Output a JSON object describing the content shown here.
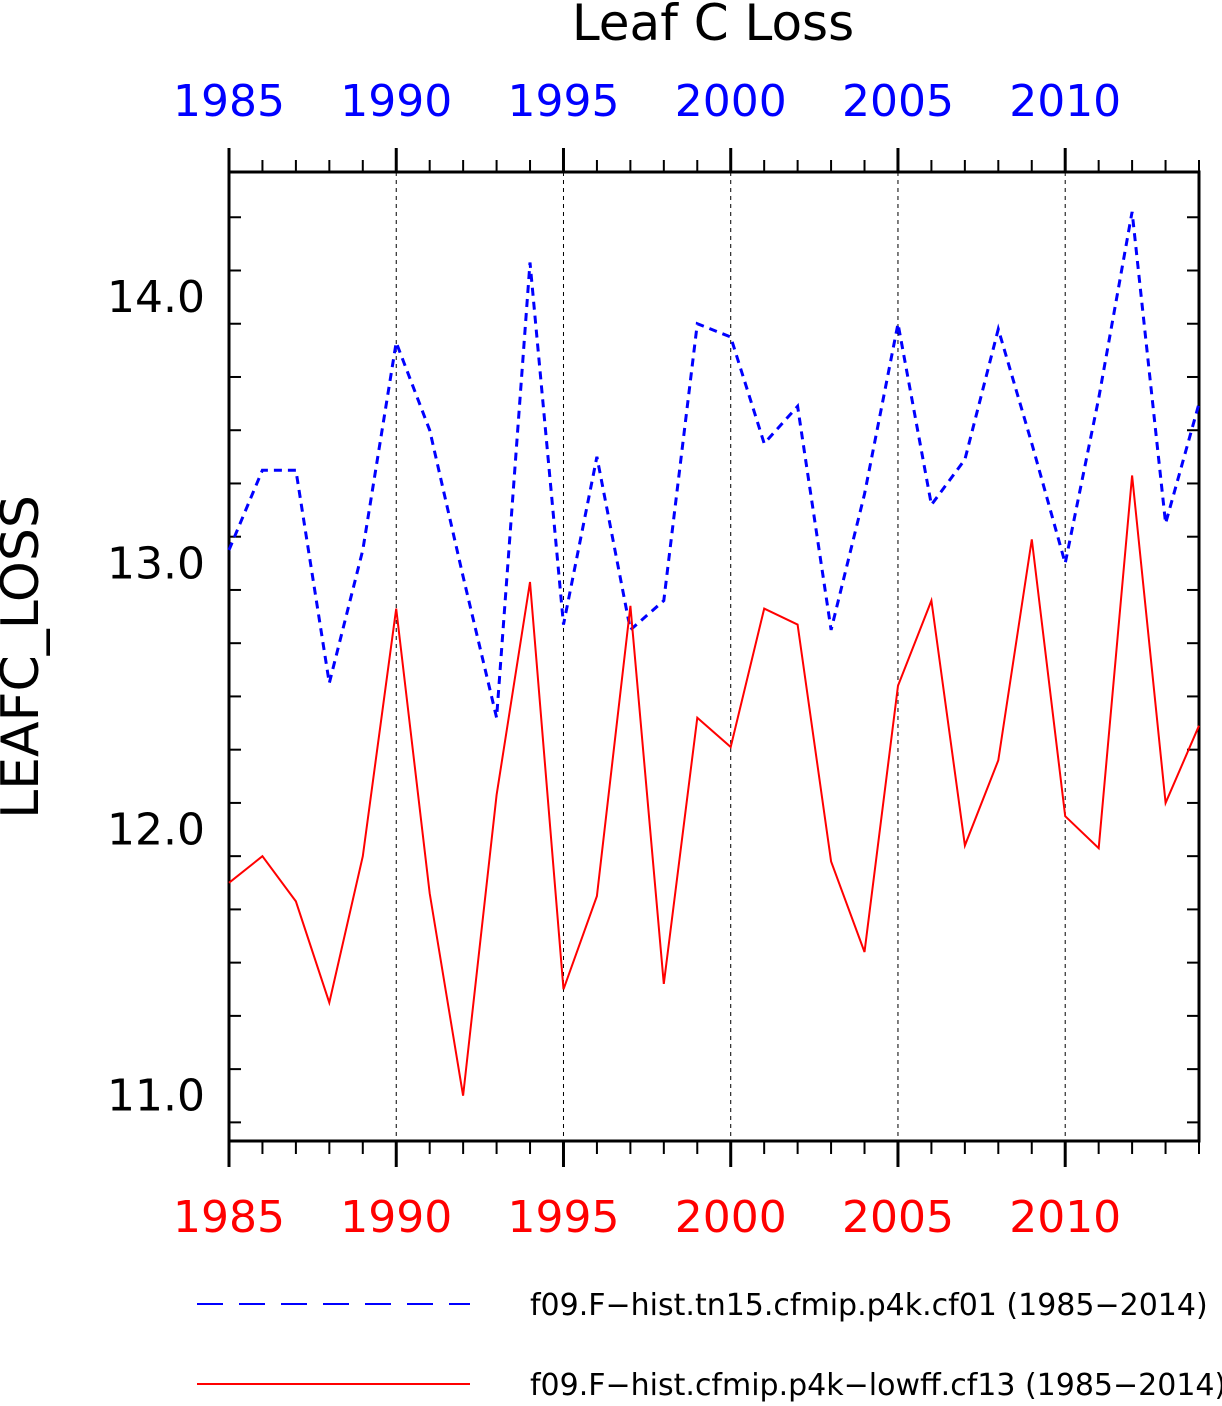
{
  "chart_data": {
    "type": "line",
    "title": "Leaf C Loss",
    "ylabel": "LEAFC_LOSS",
    "xlabel": "",
    "xlim": [
      1985,
      2014
    ],
    "ylim": [
      10.83,
      14.47
    ],
    "x_ticks": [
      1985,
      1990,
      1995,
      2000,
      2005,
      2010
    ],
    "x_tick_labels": [
      "1985",
      "1990",
      "1995",
      "2000",
      "2005",
      "2010"
    ],
    "y_ticks": [
      11.0,
      12.0,
      13.0,
      14.0
    ],
    "y_tick_labels": [
      "11.0",
      "12.0",
      "13.0",
      "14.0"
    ],
    "grid": "vertical dashed at major x ticks",
    "legend_position": "bottom",
    "x": [
      1985,
      1986,
      1987,
      1988,
      1989,
      1990,
      1991,
      1992,
      1993,
      1994,
      1995,
      1996,
      1997,
      1998,
      1999,
      2000,
      2001,
      2002,
      2003,
      2004,
      2005,
      2006,
      2007,
      2008,
      2009,
      2010,
      2011,
      2012,
      2013,
      2014
    ],
    "series": [
      {
        "name": "f09.F−hist.tn15.cfmip.p4k.cf01 (1985−2014)",
        "color": "#0000ff",
        "style": "dashed",
        "axis_label_color": "#0000ff",
        "values": [
          13.05,
          13.35,
          13.35,
          12.55,
          13.05,
          13.83,
          13.5,
          12.95,
          12.42,
          14.13,
          12.77,
          13.4,
          12.75,
          12.86,
          13.9,
          13.85,
          13.45,
          13.59,
          12.75,
          13.26,
          13.9,
          13.22,
          13.39,
          13.88,
          13.45,
          13.0,
          13.62,
          14.32,
          13.15,
          13.6
        ]
      },
      {
        "name": "f09.F−hist.cfmip.p4k−lowff.cf13 (1985−2014)",
        "color": "#ff0000",
        "style": "solid",
        "axis_label_color": "#ff0000",
        "values": [
          11.8,
          11.9,
          11.73,
          11.35,
          11.9,
          12.83,
          11.76,
          11.0,
          12.13,
          12.93,
          11.4,
          11.75,
          12.84,
          11.42,
          12.42,
          12.31,
          12.83,
          12.77,
          11.88,
          11.54,
          12.54,
          12.86,
          11.94,
          12.26,
          13.09,
          12.05,
          11.93,
          13.33,
          12.1,
          12.39
        ]
      }
    ]
  }
}
